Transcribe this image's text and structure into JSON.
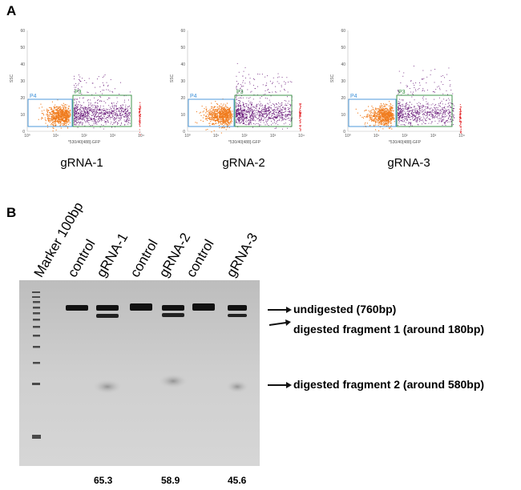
{
  "panel_a": {
    "letter": "A",
    "plots": [
      {
        "title": "gRNA-1",
        "y_axis_label": "SSC",
        "x_axis_label": "*530/40[488]-GFP",
        "y_ticks": [
          "60",
          "50",
          "40",
          "30",
          "20",
          "10",
          "0"
        ],
        "x_ticks": [
          "10⁰",
          "10¹",
          "10²",
          "10³",
          "10⁴"
        ],
        "gates": [
          "P4",
          "P3"
        ]
      },
      {
        "title": "gRNA-2",
        "y_axis_label": "SSC",
        "x_axis_label": "*530/40[488]-GFP",
        "y_ticks": [
          "60",
          "50",
          "40",
          "30",
          "20",
          "10",
          "0"
        ],
        "x_ticks": [
          "10⁰",
          "10¹",
          "10²",
          "10³",
          "10⁴"
        ],
        "gates": [
          "P4",
          "P3"
        ]
      },
      {
        "title": "gRNA-3",
        "y_axis_label": "SSC",
        "x_axis_label": "*530/40[488]-GFP",
        "y_ticks": [
          "60",
          "50",
          "40",
          "30",
          "20",
          "10",
          "0"
        ],
        "x_ticks": [
          "10⁰",
          "10¹",
          "10²",
          "10³",
          "10⁴"
        ],
        "gates": [
          "P4",
          "P3"
        ]
      }
    ],
    "colors": {
      "p4_gate": "#3a8fd8",
      "p3_gate": "#2e8b3a",
      "gfp_negative": "#f07c1e",
      "gfp_positive": "#6a1a7a",
      "edge": "#e3262a"
    }
  },
  "panel_b": {
    "letter": "B",
    "lanes": [
      "Marker 100bp",
      "control",
      "gRNA-1",
      "control",
      "gRNA-2",
      "control",
      "gRNA-3"
    ],
    "band_labels": [
      "undigested (760bp)",
      "digested fragment 1 (around 180bp)",
      "digested fragment 2 (around 580bp)"
    ],
    "cleavage_percent": [
      {
        "lane": "gRNA-1",
        "value": "65.3"
      },
      {
        "lane": "gRNA-2",
        "value": "58.9"
      },
      {
        "lane": "gRNA-3",
        "value": "45.6"
      }
    ]
  }
}
